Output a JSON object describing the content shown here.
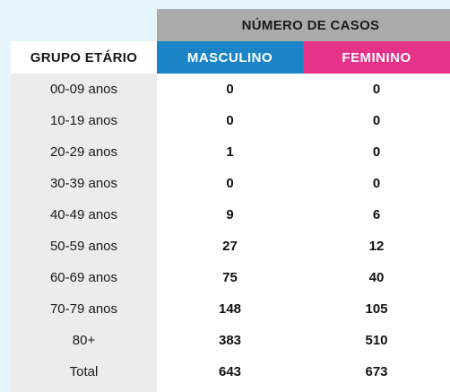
{
  "table": {
    "header_title": "NÚMERO DE CASOS",
    "group_header": "GRUPO ETÁRIO",
    "male_header": "MASCULINO",
    "female_header": "FEMININO",
    "colors": {
      "male": "#1b84c6",
      "female": "#e5338a",
      "header_gray": "#ababab",
      "label_col": "#ececec"
    },
    "rows": [
      {
        "age": "00-09 anos",
        "male": "0",
        "female": "0"
      },
      {
        "age": "10-19 anos",
        "male": "0",
        "female": "0"
      },
      {
        "age": "20-29 anos",
        "male": "1",
        "female": "0"
      },
      {
        "age": "30-39 anos",
        "male": "0",
        "female": "0"
      },
      {
        "age": "40-49 anos",
        "male": "9",
        "female": "6"
      },
      {
        "age": "50-59 anos",
        "male": "27",
        "female": "12"
      },
      {
        "age": "60-69 anos",
        "male": "75",
        "female": "40"
      },
      {
        "age": "70-79 anos",
        "male": "148",
        "female": "105"
      },
      {
        "age": "80+",
        "male": "383",
        "female": "510"
      },
      {
        "age": "Total",
        "male": "643",
        "female": "673"
      }
    ]
  }
}
